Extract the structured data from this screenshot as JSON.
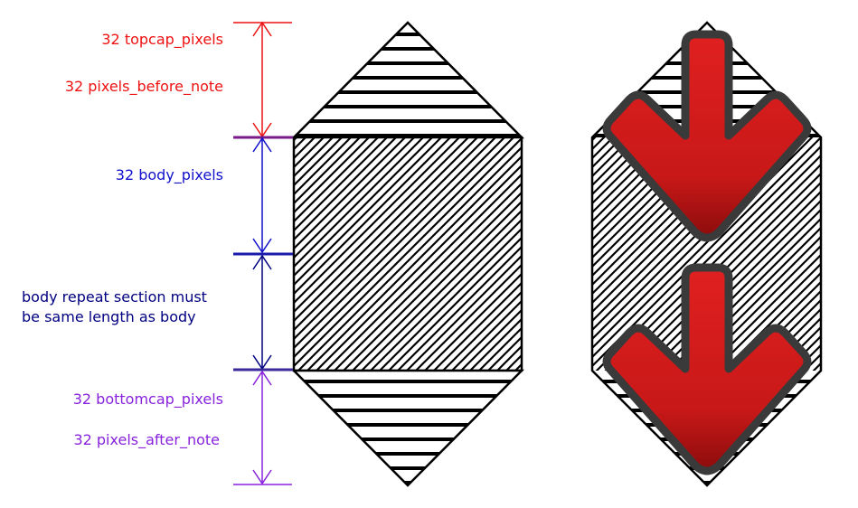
{
  "colors": {
    "topcap": "#ee1111",
    "body": "#1111cc",
    "repeat": "#000080",
    "bottomcap": "#8822dd",
    "arrow_red": "#dd1c1c",
    "arrow_outline": "#3a3a3a",
    "hatch": "#000000"
  },
  "labels": {
    "topcap_pixels": "32 topcap_pixels",
    "pixels_before_note": "32 pixels_before_note",
    "body_pixels": "32 body_pixels",
    "repeat_line1": "body repeat section must",
    "repeat_line2": "be same length as body",
    "bottomcap_pixels": "32 bottomcap_pixels",
    "pixels_after_note": "32 pixels_after_note"
  },
  "icons": [
    "down-arrow-icon",
    "down-arrow-icon"
  ]
}
